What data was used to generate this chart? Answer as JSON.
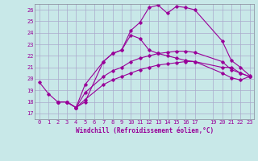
{
  "xlabel": "Windchill (Refroidissement éolien,°C)",
  "ylabel": "",
  "bg_color": "#c8e8e8",
  "grid_color": "#aaaacc",
  "line_color": "#990099",
  "xlim": [
    -0.5,
    23.5
  ],
  "ylim": [
    16.5,
    26.5
  ],
  "xticks": [
    0,
    1,
    2,
    3,
    4,
    5,
    6,
    7,
    8,
    9,
    10,
    11,
    12,
    13,
    14,
    15,
    16,
    17,
    19,
    20,
    21,
    22,
    23
  ],
  "yticks": [
    17,
    18,
    19,
    20,
    21,
    22,
    23,
    24,
    25,
    26
  ],
  "line1_x": [
    0,
    1,
    2,
    3,
    4,
    5,
    7,
    8,
    9,
    10,
    11,
    12,
    13,
    14,
    15,
    16,
    17,
    20,
    21,
    22,
    23
  ],
  "line1_y": [
    19.7,
    18.7,
    18.0,
    18.0,
    17.5,
    18.0,
    21.5,
    22.2,
    22.5,
    24.2,
    24.9,
    26.2,
    26.4,
    25.7,
    26.3,
    26.2,
    26.0,
    23.3,
    21.6,
    21.0,
    20.3
  ],
  "line2_x": [
    2,
    3,
    4,
    5,
    7,
    8,
    9,
    10,
    11,
    12,
    13,
    14,
    15,
    16,
    17,
    20,
    21,
    22,
    23
  ],
  "line2_y": [
    18.0,
    18.0,
    17.5,
    19.5,
    21.5,
    22.2,
    22.5,
    23.8,
    23.5,
    22.5,
    22.2,
    22.0,
    21.8,
    21.6,
    21.5,
    21.0,
    21.0,
    20.5,
    20.2
  ],
  "line3_x": [
    2,
    3,
    4,
    5,
    7,
    8,
    9,
    10,
    11,
    12,
    13,
    14,
    15,
    16,
    17,
    20,
    21,
    22,
    23
  ],
  "line3_y": [
    18.0,
    18.0,
    17.5,
    18.8,
    20.2,
    20.7,
    21.0,
    21.5,
    21.8,
    22.0,
    22.2,
    22.3,
    22.4,
    22.4,
    22.3,
    21.5,
    20.8,
    20.5,
    20.2
  ],
  "line4_x": [
    2,
    3,
    4,
    5,
    7,
    8,
    9,
    10,
    11,
    12,
    13,
    14,
    15,
    16,
    17,
    20,
    21,
    22,
    23
  ],
  "line4_y": [
    18.0,
    18.0,
    17.5,
    18.2,
    19.5,
    19.9,
    20.2,
    20.5,
    20.8,
    21.0,
    21.2,
    21.3,
    21.4,
    21.5,
    21.5,
    20.5,
    20.1,
    19.9,
    20.2
  ]
}
